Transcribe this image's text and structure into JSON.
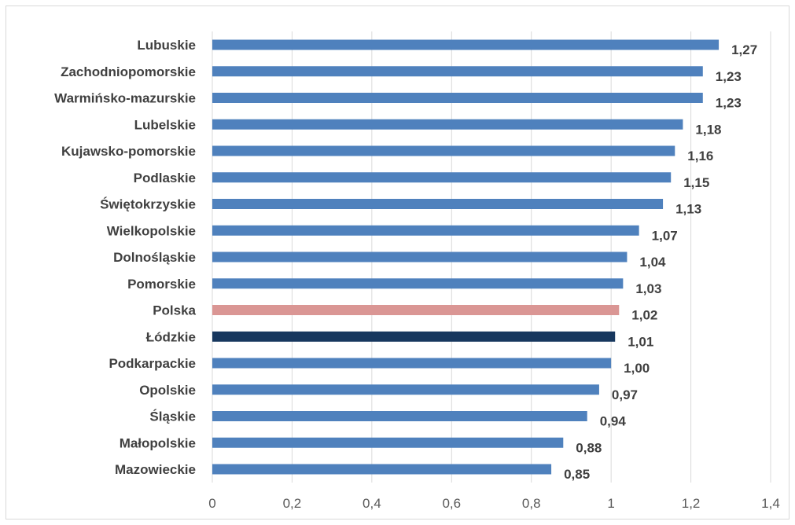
{
  "chart_data": {
    "type": "bar",
    "orientation": "horizontal",
    "categories": [
      "Lubuskie",
      "Zachodniopomorskie",
      "Warmińsko-mazurskie",
      "Lubelskie",
      "Kujawsko-pomorskie",
      "Podlaskie",
      "Świętokrzyskie",
      "Wielkopolskie",
      "Dolnośląskie",
      "Pomorskie",
      "Polska",
      "Łódzkie",
      "Podkarpackie",
      "Opolskie",
      "Śląskie",
      "Małopolskie",
      "Mazowieckie"
    ],
    "values": [
      1.27,
      1.23,
      1.23,
      1.18,
      1.16,
      1.15,
      1.13,
      1.07,
      1.04,
      1.03,
      1.02,
      1.01,
      1.0,
      0.97,
      0.94,
      0.88,
      0.85
    ],
    "value_labels": [
      "1,27",
      "1,23",
      "1,23",
      "1,18",
      "1,16",
      "1,15",
      "1,13",
      "1,07",
      "1,04",
      "1,03",
      "1,02",
      "1,01",
      "1,00",
      "0,97",
      "0,94",
      "0,88",
      "0,85"
    ],
    "bar_colors": [
      "#4f81bd",
      "#4f81bd",
      "#4f81bd",
      "#4f81bd",
      "#4f81bd",
      "#4f81bd",
      "#4f81bd",
      "#4f81bd",
      "#4f81bd",
      "#4f81bd",
      "#da9694",
      "#17375e",
      "#4f81bd",
      "#4f81bd",
      "#4f81bd",
      "#4f81bd",
      "#4f81bd"
    ],
    "xlim": [
      0,
      1.4
    ],
    "x_ticks": [
      0,
      0.2,
      0.4,
      0.6,
      0.8,
      1,
      1.2,
      1.4
    ],
    "x_tick_labels": [
      "0",
      "0,2",
      "0,4",
      "0,6",
      "0,8",
      "1",
      "1,2",
      "1,4"
    ],
    "grid": "vertical",
    "gridline_color": "#d9d9d9",
    "title": "",
    "xlabel": "",
    "ylabel": ""
  }
}
